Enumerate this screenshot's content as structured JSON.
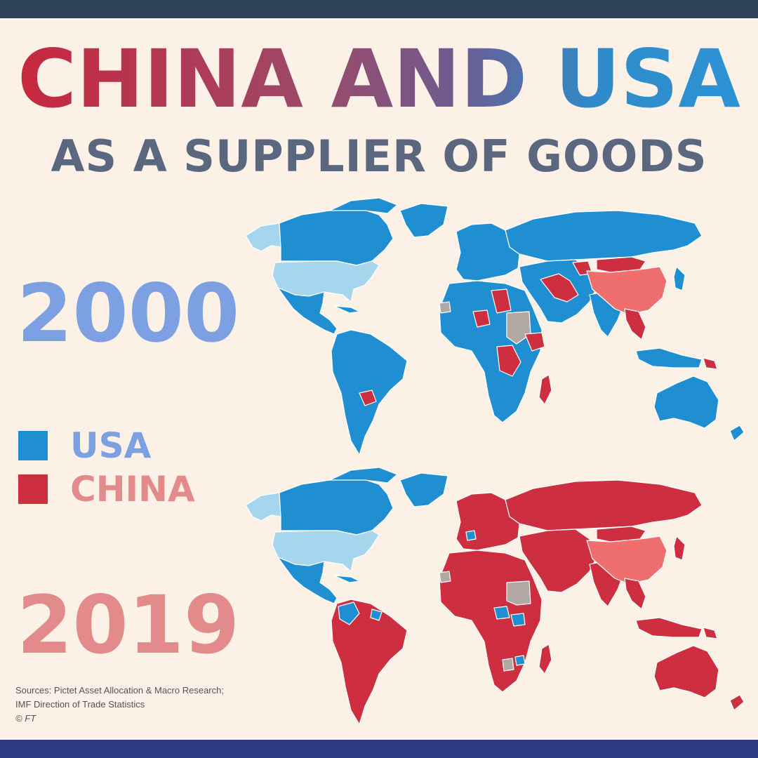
{
  "title": {
    "china": "CHINA",
    "and": "AND",
    "usa": "USA"
  },
  "subtitle": "AS A SUPPLIER OF GOODS",
  "years": {
    "first": "2000",
    "second": "2019"
  },
  "legend": [
    {
      "label": "USA",
      "color": "#1f8fd2"
    },
    {
      "label": "CHINA",
      "color": "#cd2f40"
    }
  ],
  "map_colors": {
    "usa": "#1f8fd2",
    "china": "#cd2f40",
    "us_itself": "#a6d6ee",
    "china_itself": "#ef6f6f",
    "no_data": "#b1a8a3"
  },
  "sources": {
    "line1": "Sources: Pictet Asset Allocation & Macro Research;",
    "line2": "IMF Direction of Trade Statistics",
    "line3": "© FT"
  }
}
